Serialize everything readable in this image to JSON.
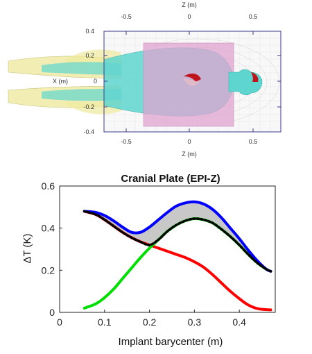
{
  "chart_data": [
    {
      "type": "diagram",
      "top_axis_label": "Z (m)",
      "bottom_axis_label": "Z (m)",
      "left_axis_label": "X (m)",
      "z_ticks": [
        "-0.5",
        "0",
        "0.5"
      ],
      "x_ticks": [
        "0.4",
        "0.2",
        "0",
        "-0.2",
        "-0.4"
      ],
      "colors": {
        "plate": "#e0a4d2",
        "body": "#5fd5cf",
        "limbs": "#efe9a0",
        "implant": "#c0141c",
        "box": "#3b3b8a"
      }
    },
    {
      "type": "line",
      "title": "Cranial Plate (EPI-Z)",
      "xlabel": "Implant barycenter (m)",
      "ylabel": "ΔT (K)",
      "xlim": [
        0,
        0.48
      ],
      "ylim": [
        0,
        0.6
      ],
      "x_ticks": [
        "0",
        "0.1",
        "0.2",
        "0.3",
        "0.4"
      ],
      "y_ticks": [
        "0",
        "0.2",
        "0.4",
        "0.6"
      ],
      "x_tick_values": [
        0,
        0.1,
        0.2,
        0.3,
        0.4
      ],
      "y_tick_values": [
        0,
        0.2,
        0.4,
        0.6
      ],
      "grid": false,
      "series": [
        {
          "color": "#0000ff",
          "style": "solid",
          "x": [
            0.055,
            0.08,
            0.1,
            0.12,
            0.14,
            0.16,
            0.18,
            0.2,
            0.22,
            0.24,
            0.26,
            0.28,
            0.3,
            0.32,
            0.34,
            0.36,
            0.38,
            0.4,
            0.42,
            0.44,
            0.46,
            0.47
          ],
          "y": [
            0.48,
            0.475,
            0.46,
            0.435,
            0.405,
            0.38,
            0.38,
            0.405,
            0.44,
            0.475,
            0.505,
            0.52,
            0.525,
            0.515,
            0.49,
            0.45,
            0.4,
            0.35,
            0.295,
            0.245,
            0.205,
            0.195
          ]
        },
        {
          "color": "#00dd00",
          "style": "solid",
          "x": [
            0.055,
            0.08,
            0.1,
            0.12,
            0.14,
            0.16,
            0.18,
            0.2,
            0.22,
            0.24,
            0.26,
            0.28,
            0.3,
            0.32,
            0.34,
            0.36,
            0.38,
            0.4,
            0.42,
            0.44,
            0.46,
            0.47
          ],
          "y": [
            0.02,
            0.04,
            0.07,
            0.11,
            0.16,
            0.21,
            0.26,
            0.305,
            0.345,
            0.385,
            0.415,
            0.435,
            0.445,
            0.44,
            0.425,
            0.395,
            0.36,
            0.32,
            0.275,
            0.235,
            0.205,
            0.195
          ]
        },
        {
          "color": "#ff0000",
          "style": "solid",
          "x": [
            0.055,
            0.08,
            0.1,
            0.12,
            0.14,
            0.16,
            0.18,
            0.2,
            0.22,
            0.24,
            0.26,
            0.28,
            0.3,
            0.32,
            0.34,
            0.36,
            0.38,
            0.4,
            0.42,
            0.44,
            0.46,
            0.47
          ],
          "y": [
            0.48,
            0.465,
            0.44,
            0.41,
            0.38,
            0.355,
            0.335,
            0.32,
            0.305,
            0.29,
            0.275,
            0.26,
            0.24,
            0.215,
            0.18,
            0.14,
            0.1,
            0.065,
            0.035,
            0.018,
            0.013,
            0.012
          ]
        },
        {
          "color": "#000000",
          "style": "dotted",
          "x": [
            0.055,
            0.08,
            0.1,
            0.12,
            0.14,
            0.16,
            0.18,
            0.2,
            0.22,
            0.24,
            0.26,
            0.28,
            0.3,
            0.32,
            0.34,
            0.36,
            0.38,
            0.4,
            0.42,
            0.44,
            0.46,
            0.47
          ],
          "y": [
            0.48,
            0.465,
            0.44,
            0.41,
            0.38,
            0.355,
            0.335,
            0.32,
            0.345,
            0.385,
            0.415,
            0.435,
            0.445,
            0.44,
            0.425,
            0.395,
            0.36,
            0.32,
            0.275,
            0.235,
            0.205,
            0.195
          ]
        }
      ],
      "fill_between": {
        "color": "#c8c8c8",
        "upper_series": 0,
        "lower_series": 3
      }
    }
  ]
}
